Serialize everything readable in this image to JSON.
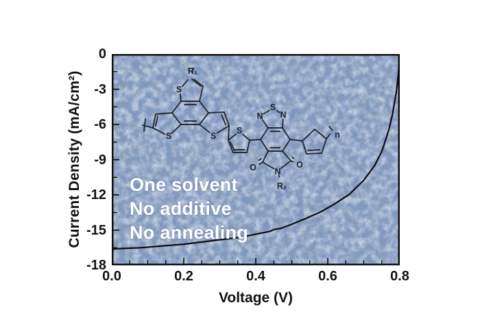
{
  "figure": {
    "yaxis": {
      "title": "Current Density (mA/cm²)",
      "ticks": [
        "0",
        "-3",
        "-6",
        "-9",
        "-12",
        "-15",
        "-18"
      ]
    },
    "xaxis": {
      "title": "Voltage (V)",
      "ticks": [
        "0.0",
        "0.2",
        "0.4",
        "0.6",
        "0.8"
      ]
    },
    "overlay_lines": [
      "One solvent",
      "No additive",
      "No annealing"
    ],
    "molecule_labels": {
      "s": "S",
      "n_atom": "N",
      "o": "O",
      "r1": "R₁",
      "r2": "R₂",
      "repeat": "n"
    }
  },
  "chart_data": {
    "type": "line",
    "title": "",
    "xlabel": "Voltage (V)",
    "ylabel": "Current Density (mA/cm²)",
    "xlim": [
      0,
      0.8
    ],
    "ylim": [
      -18,
      0
    ],
    "x_major_ticks": [
      0,
      0.2,
      0.4,
      0.6,
      0.8
    ],
    "y_major_ticks": [
      0,
      -3,
      -6,
      -9,
      -12,
      -15,
      -18
    ],
    "x_minor_step": 0.05,
    "y_minor_step": 1.5,
    "grid": false,
    "legend": "none",
    "annotations": [
      "One solvent",
      "No additive",
      "No annealing"
    ],
    "background": "mottled blue texture with polymer chemical structure (R₁-benzotrithiophene / thiophene / thiadiazole-imide(R₂) core / thiophene, repeat n)",
    "colors": {
      "curve": "#0b0b0b",
      "plot_bg": "#8098c0",
      "overlay_text": "#ffffff",
      "frame": "#101010"
    },
    "series": [
      {
        "name": "J-V curve (one solvent, no additive, no annealing)",
        "x": [
          0.0,
          0.04,
          0.08,
          0.12,
          0.16,
          0.2,
          0.24,
          0.28,
          0.32,
          0.36,
          0.4,
          0.44,
          0.45,
          0.47,
          0.5,
          0.54,
          0.58,
          0.62,
          0.66,
          0.7,
          0.73,
          0.75,
          0.77,
          0.78,
          0.79,
          0.795,
          0.8
        ],
        "y": [
          -16.6,
          -16.55,
          -16.5,
          -16.4,
          -16.3,
          -16.2,
          -16.05,
          -15.9,
          -15.75,
          -15.6,
          -15.35,
          -15.1,
          -14.95,
          -14.85,
          -14.5,
          -14.0,
          -13.45,
          -12.75,
          -11.95,
          -10.75,
          -9.5,
          -8.3,
          -6.4,
          -5.1,
          -3.3,
          -2.0,
          0.0
        ]
      }
    ]
  }
}
